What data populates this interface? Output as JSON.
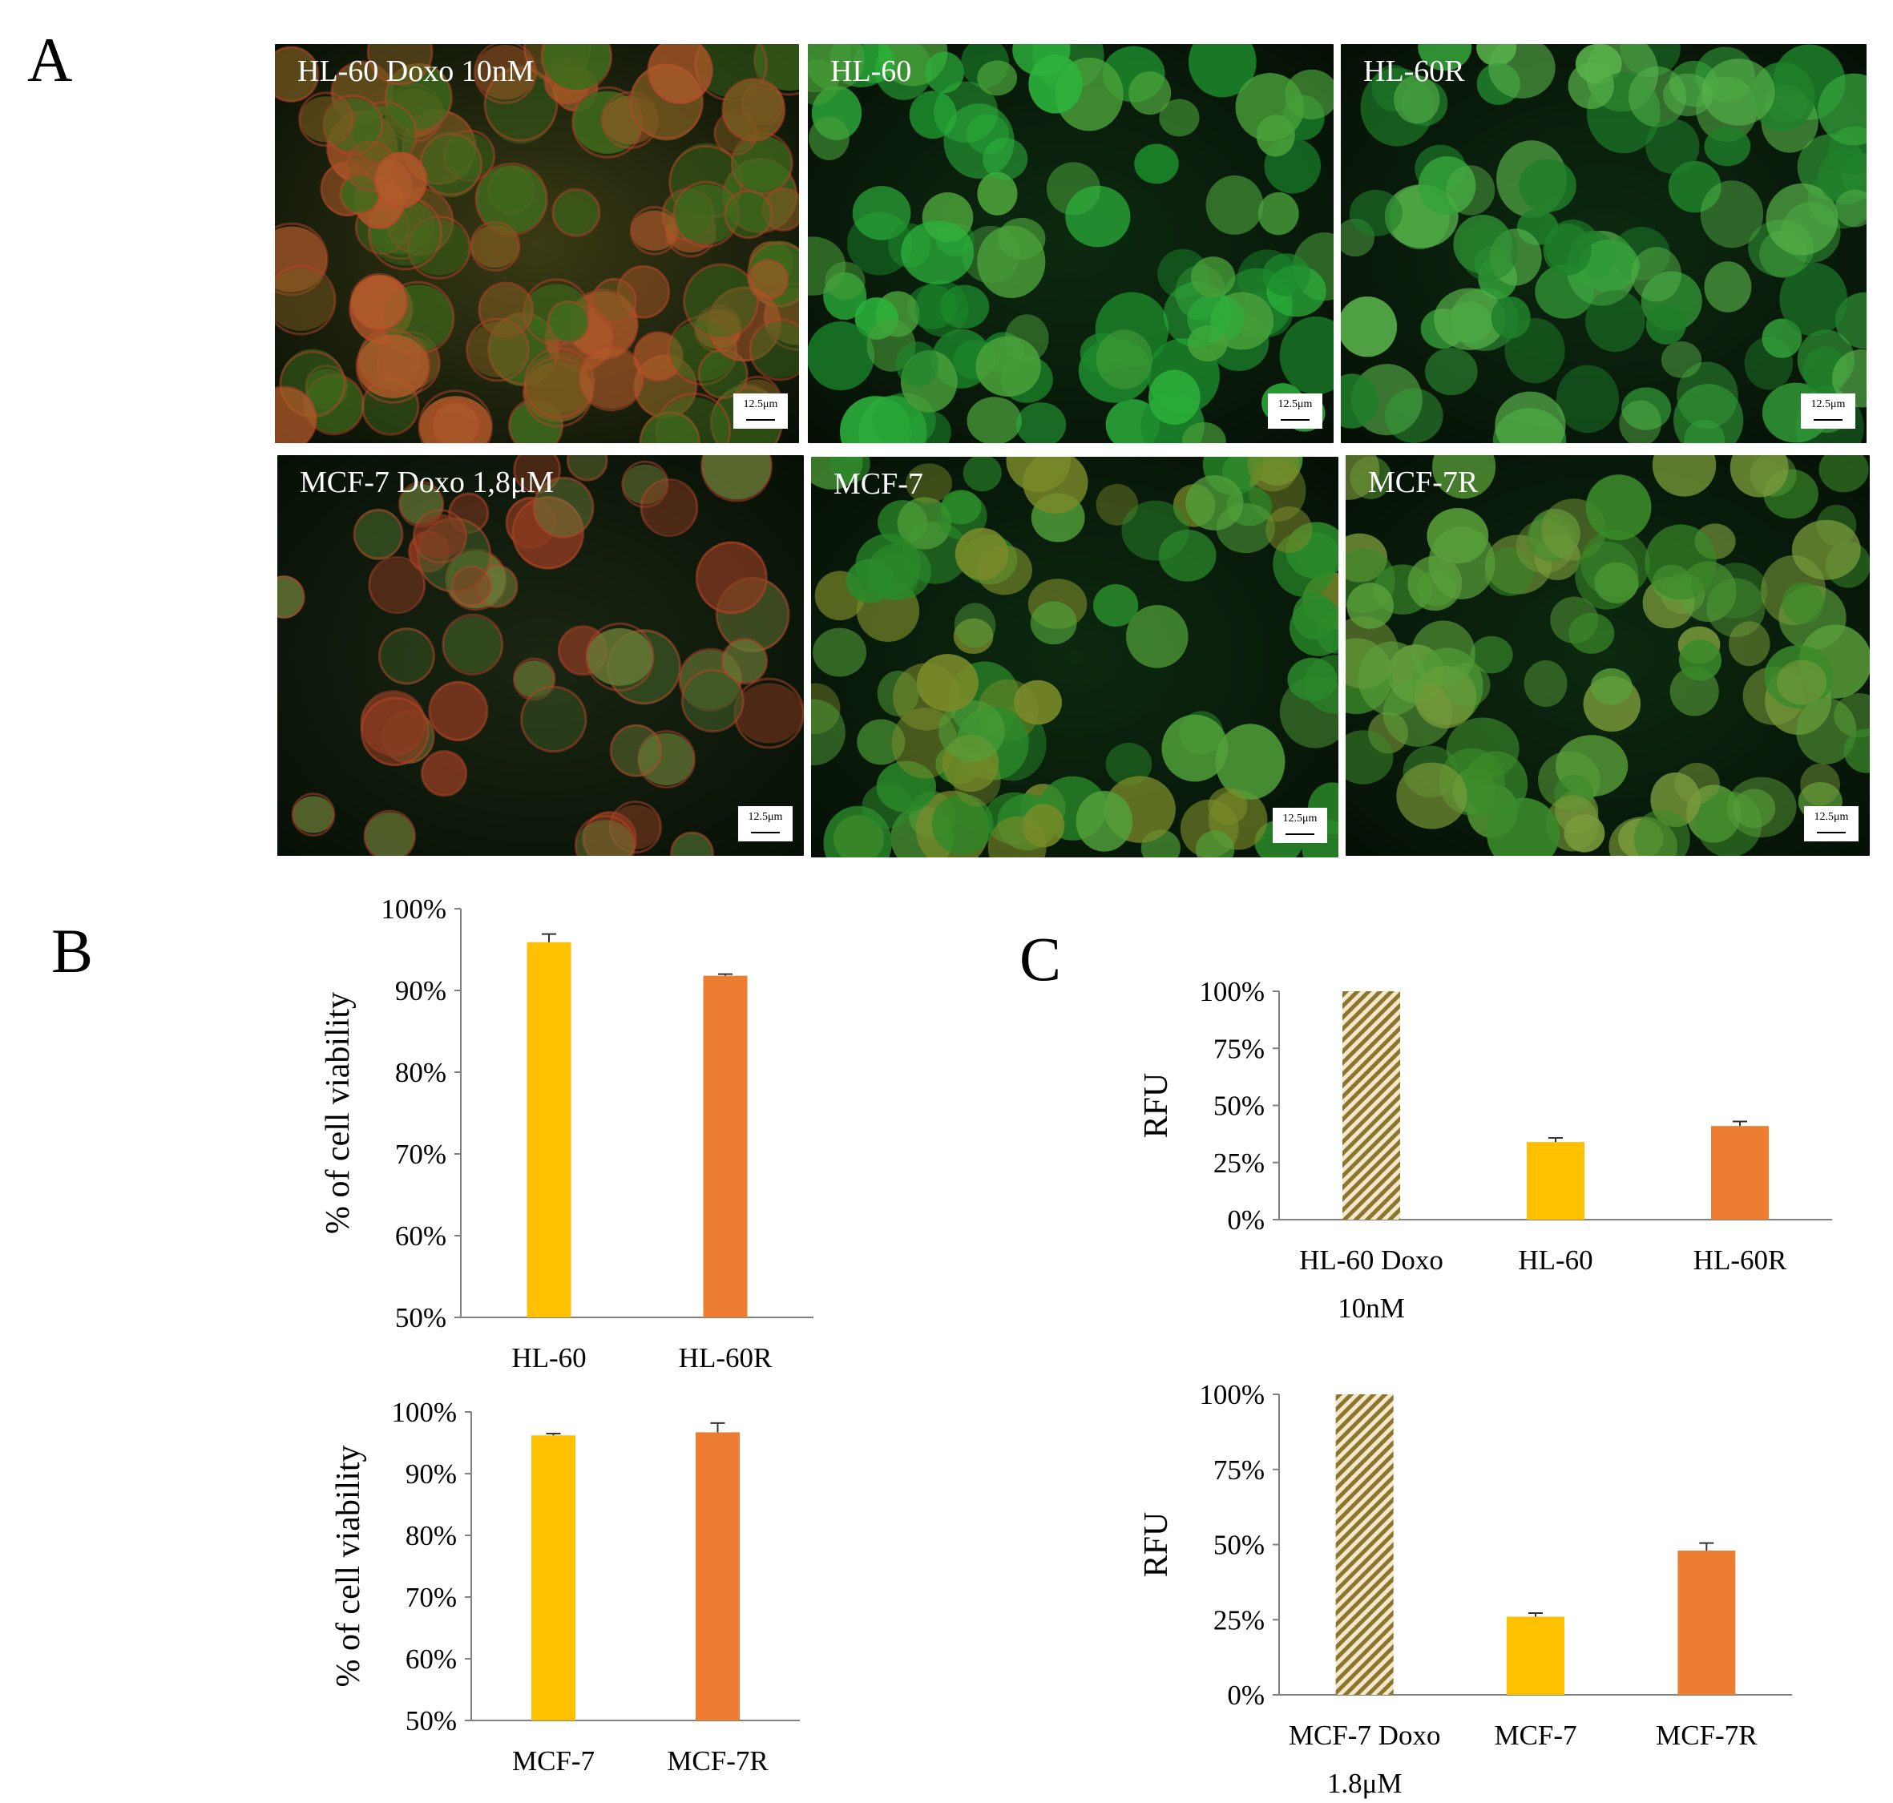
{
  "panels": {
    "a": "A",
    "b": "B",
    "c": "C"
  },
  "micrographs": [
    {
      "label": "HL-60 Doxo 10nM",
      "scale": "12.5μm",
      "tint": "mixed",
      "colors": [
        "#3f6a1c",
        "#7a5a20",
        "#b25a2a"
      ]
    },
    {
      "label": "HL-60",
      "scale": "12.5μm",
      "tint": "green",
      "colors": [
        "#1c8a2c",
        "#2cb23c",
        "#4aa03a"
      ]
    },
    {
      "label": "HL-60R",
      "scale": "12.5μm",
      "tint": "green",
      "colors": [
        "#1f7f2a",
        "#35a23a",
        "#58b24a"
      ]
    },
    {
      "label": "MCF-7 Doxo 1,8μM",
      "scale": "12.5μm",
      "tint": "dim",
      "colors": [
        "#3e5a26",
        "#6a7a36",
        "#8a3a20"
      ]
    },
    {
      "label": "MCF-7",
      "scale": "12.5μm",
      "tint": "green",
      "colors": [
        "#2a8a2a",
        "#52a23a",
        "#7a8a2a"
      ]
    },
    {
      "label": "MCF-7R",
      "scale": "12.5μm",
      "tint": "green",
      "colors": [
        "#3a8a2a",
        "#5aa03a",
        "#7a9a3a"
      ]
    }
  ],
  "colors": {
    "yellow": "#FFC000",
    "orange": "#ED7D31",
    "hatch": "#8B7530",
    "axis": "#808080"
  },
  "chart_data": [
    {
      "id": "b-top",
      "type": "bar",
      "categories": [
        "HL-60",
        "HL-60R"
      ],
      "values": [
        95.9,
        91.8
      ],
      "errors": [
        1.0,
        0.2
      ],
      "ylabel": "% of cell viability",
      "yticks": [
        "50%",
        "60%",
        "70%",
        "80%",
        "90%",
        "100%"
      ],
      "ylim": [
        50,
        100
      ],
      "grid": false
    },
    {
      "id": "b-bottom",
      "type": "bar",
      "categories": [
        "MCF-7",
        "MCF-7R"
      ],
      "values": [
        96.2,
        96.7
      ],
      "errors": [
        0.3,
        1.5
      ],
      "ylabel": "% of cell viability",
      "yticks": [
        "50%",
        "60%",
        "70%",
        "80%",
        "90%",
        "100%"
      ],
      "ylim": [
        50,
        100
      ],
      "grid": false
    },
    {
      "id": "c-top",
      "type": "bar",
      "categories": [
        [
          "HL-60 Doxo",
          "10nM"
        ],
        [
          "HL-60"
        ],
        [
          "HL-60R"
        ]
      ],
      "values": [
        100,
        34,
        41
      ],
      "errors": [
        0,
        1.8,
        2.0
      ],
      "ylabel": "RFU",
      "yticks": [
        "0%",
        "25%",
        "50%",
        "75%",
        "100%"
      ],
      "ylim": [
        0,
        100
      ],
      "grid": false
    },
    {
      "id": "c-bottom",
      "type": "bar",
      "categories": [
        [
          "MCF-7 Doxo",
          "1.8μM"
        ],
        [
          "MCF-7"
        ],
        [
          "MCF-7R"
        ]
      ],
      "values": [
        100,
        26,
        48
      ],
      "errors": [
        0,
        1.2,
        2.5
      ],
      "ylabel": "RFU",
      "yticks": [
        "0%",
        "25%",
        "50%",
        "75%",
        "100%"
      ],
      "ylim": [
        0,
        100
      ],
      "grid": false
    }
  ]
}
